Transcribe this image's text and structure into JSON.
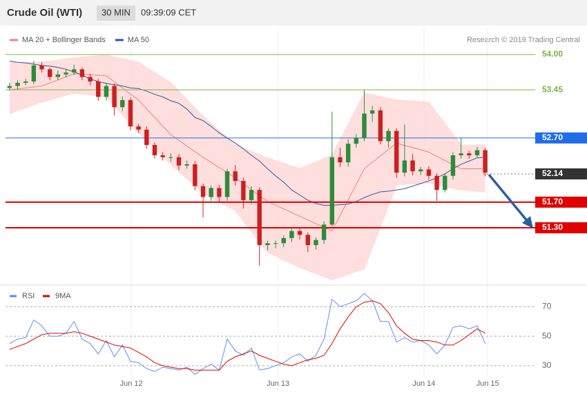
{
  "chart_data": [
    {
      "type": "candlestick",
      "title": "Crude Oil (WTI)",
      "timeframe": "30 MIN",
      "time": "09:39:09 CET",
      "credit": "Research © 2019 Trading Central",
      "up_color": "#2e8b3a",
      "down_color": "#cc2020",
      "xlim": [
        -0.5,
        65.2
      ],
      "ylim": [
        50.44,
        54.42
      ],
      "xticks": [
        {
          "value": 15.1,
          "label": "Jun 12"
        },
        {
          "value": 33.3,
          "label": "Jun 13"
        },
        {
          "value": 51.4,
          "label": "Jun 14"
        },
        {
          "value": 59.3,
          "label": "Jun 15"
        }
      ],
      "x": [
        0,
        1,
        2,
        3,
        4,
        5,
        6,
        7,
        8,
        9,
        10,
        11,
        12,
        13,
        14,
        15,
        16,
        17,
        18,
        19,
        20,
        21,
        22,
        23,
        24,
        25,
        26,
        27,
        28,
        29,
        30,
        31,
        32,
        33,
        34,
        35,
        36,
        37,
        38,
        39,
        40,
        41,
        42,
        43,
        44,
        45,
        46,
        47,
        48,
        49,
        50,
        51,
        52,
        53,
        54,
        55,
        56,
        57,
        58,
        59
      ],
      "open": [
        53.48,
        53.51,
        53.56,
        53.58,
        53.83,
        53.77,
        53.65,
        53.69,
        53.72,
        53.77,
        53.65,
        53.58,
        53.34,
        53.51,
        53.18,
        53.29,
        52.88,
        52.83,
        52.59,
        52.43,
        52.4,
        52.4,
        52.27,
        52.29,
        51.95,
        51.78,
        51.92,
        51.78,
        52.18,
        52.03,
        51.73,
        51.89,
        51.03,
        51.06,
        51.06,
        51.14,
        51.25,
        51.19,
        51.03,
        51.11,
        51.35,
        52.4,
        52.32,
        52.61,
        52.7,
        53.08,
        53.13,
        52.65,
        52.81,
        52.16,
        52.35,
        52.18,
        52.21,
        52.11,
        51.89,
        52.11,
        52.43,
        52.46,
        52.43,
        52.51
      ],
      "high": [
        53.56,
        53.6,
        53.62,
        53.9,
        53.88,
        53.8,
        53.75,
        53.78,
        53.84,
        53.8,
        53.7,
        53.62,
        53.56,
        53.55,
        53.35,
        53.33,
        52.92,
        52.88,
        52.63,
        52.48,
        52.46,
        52.45,
        52.35,
        52.34,
        51.99,
        51.96,
        51.97,
        52.22,
        52.28,
        52.08,
        51.95,
        51.93,
        51.1,
        51.1,
        51.18,
        51.3,
        51.3,
        51.23,
        51.15,
        51.4,
        53.11,
        52.55,
        52.68,
        52.76,
        53.45,
        53.2,
        53.18,
        52.85,
        52.85,
        52.91,
        52.45,
        52.25,
        52.26,
        52.15,
        52.15,
        52.48,
        52.7,
        52.5,
        52.56,
        52.55
      ],
      "low": [
        53.44,
        53.46,
        53.52,
        53.54,
        53.72,
        53.6,
        53.6,
        53.64,
        53.68,
        53.6,
        53.52,
        53.28,
        53.28,
        53.05,
        53.12,
        52.82,
        52.78,
        52.53,
        52.38,
        52.35,
        52.33,
        52.2,
        52.22,
        51.88,
        51.46,
        51.72,
        51.7,
        51.72,
        51.96,
        51.6,
        51.66,
        50.71,
        50.95,
        50.98,
        51.0,
        51.08,
        51.12,
        50.92,
        50.96,
        51.05,
        51.3,
        52.25,
        52.25,
        52.55,
        52.65,
        52.95,
        52.6,
        52.55,
        52.08,
        52.1,
        52.12,
        52.12,
        52.05,
        51.72,
        51.85,
        52.05,
        52.38,
        52.38,
        52.4,
        52.1
      ],
      "close": [
        53.51,
        53.56,
        53.58,
        53.83,
        53.77,
        53.65,
        53.69,
        53.72,
        53.77,
        53.65,
        53.58,
        53.34,
        53.51,
        53.18,
        53.29,
        52.88,
        52.83,
        52.59,
        52.43,
        52.4,
        52.4,
        52.27,
        52.29,
        51.95,
        51.78,
        51.92,
        51.78,
        52.18,
        52.03,
        51.73,
        51.89,
        51.03,
        51.06,
        51.06,
        51.14,
        51.25,
        51.19,
        51.03,
        51.11,
        51.35,
        52.4,
        52.32,
        52.61,
        52.7,
        53.08,
        53.13,
        52.65,
        52.81,
        52.16,
        52.35,
        52.18,
        52.21,
        52.11,
        51.89,
        52.11,
        52.43,
        52.46,
        52.43,
        52.51,
        52.16
      ],
      "series": [
        {
          "name": "MA 20 + Bollinger Bands",
          "color": "#f08080",
          "band_color": "#ffd6d6",
          "x": [
            0,
            4,
            8,
            12,
            16,
            20,
            24,
            28,
            32,
            36,
            40,
            44,
            48,
            52,
            56,
            59
          ],
          "values": [
            53.45,
            53.51,
            53.7,
            53.67,
            53.29,
            52.75,
            52.4,
            52.08,
            51.71,
            51.48,
            51.25,
            52.22,
            52.62,
            52.48,
            52.22,
            52.22
          ],
          "upper": [
            53.88,
            53.88,
            53.95,
            53.99,
            53.88,
            53.56,
            53.04,
            52.59,
            52.39,
            52.22,
            52.43,
            53.4,
            53.29,
            53.26,
            52.59,
            52.59
          ],
          "lower": [
            53.08,
            53.26,
            53.4,
            53.34,
            52.78,
            52.29,
            51.84,
            51.57,
            50.92,
            50.68,
            50.49,
            50.66,
            51.97,
            52.0,
            51.89,
            51.86
          ]
        },
        {
          "name": "MA 50",
          "color": "#2c5aa0",
          "x": [
            0,
            1,
            2,
            3,
            4,
            5,
            6,
            7,
            8,
            9,
            10,
            11,
            12,
            13,
            14,
            15,
            16,
            17,
            18,
            19,
            20,
            21,
            22,
            23,
            24,
            25,
            26,
            27,
            28,
            29,
            30,
            31,
            32,
            33,
            34,
            35,
            36,
            37,
            38,
            39,
            40,
            41,
            42,
            43,
            44,
            45,
            46,
            47,
            48,
            49,
            50,
            51,
            52,
            53,
            54,
            55,
            56,
            57,
            58,
            59
          ],
          "values": [
            53.9,
            53.88,
            53.87,
            53.85,
            53.83,
            53.82,
            53.8,
            53.77,
            53.73,
            53.68,
            53.62,
            53.58,
            53.55,
            53.53,
            53.51,
            53.48,
            53.47,
            53.43,
            53.38,
            53.34,
            53.28,
            53.24,
            53.15,
            53.02,
            52.97,
            52.88,
            52.78,
            52.7,
            52.62,
            52.53,
            52.43,
            52.34,
            52.22,
            52.11,
            52.01,
            51.89,
            51.81,
            51.73,
            51.68,
            51.65,
            51.65,
            51.66,
            51.67,
            51.71,
            51.77,
            51.82,
            51.86,
            51.87,
            51.89,
            51.91,
            51.95,
            51.99,
            52.03,
            52.08,
            52.14,
            52.22,
            52.29,
            52.34,
            52.39,
            52.4
          ]
        }
      ],
      "levels": [
        {
          "value": 54.0,
          "label": "54.00",
          "color": "#7cb342",
          "style": "text",
          "line": "solid"
        },
        {
          "value": 53.45,
          "label": "53.45",
          "color": "#7cb342",
          "style": "text",
          "line": "solid"
        },
        {
          "value": 52.7,
          "label": "52.70",
          "color": "#1e6ee8",
          "style": "box",
          "line": "solid"
        },
        {
          "value": 52.14,
          "label": "52.14",
          "color": "#333333",
          "style": "box",
          "line": "dotted"
        },
        {
          "value": 51.7,
          "label": "51.70",
          "color": "#e00000",
          "style": "box",
          "line": "solid"
        },
        {
          "value": 51.3,
          "label": "51.30",
          "color": "#e00000",
          "style": "box",
          "line": "solid"
        }
      ]
    },
    {
      "type": "line",
      "xlim": [
        -0.5,
        65.2
      ],
      "ylim": [
        22.9,
        81.4
      ],
      "yticks": [
        30,
        50,
        70
      ],
      "x": [
        0,
        1,
        2,
        3,
        4,
        5,
        6,
        7,
        8,
        9,
        10,
        11,
        12,
        13,
        14,
        15,
        16,
        17,
        18,
        19,
        20,
        21,
        22,
        23,
        24,
        25,
        26,
        27,
        28,
        29,
        30,
        31,
        32,
        33,
        34,
        35,
        36,
        37,
        38,
        39,
        40,
        41,
        42,
        43,
        44,
        45,
        46,
        47,
        48,
        49,
        50,
        51,
        52,
        53,
        54,
        55,
        56,
        57,
        58,
        59
      ],
      "series": [
        {
          "name": "RSI",
          "color": "#5b8def",
          "values": [
            45,
            48,
            49,
            61,
            57,
            50,
            50,
            52,
            60,
            48,
            45,
            38,
            47,
            36,
            44,
            33,
            32,
            28,
            26,
            29,
            28,
            27,
            29,
            24,
            28,
            31,
            27,
            48,
            40,
            37,
            42,
            27,
            28,
            30,
            32,
            36,
            38,
            33,
            37,
            48,
            75,
            70,
            72,
            74,
            79,
            74,
            60,
            60,
            46,
            49,
            46,
            47,
            44,
            38,
            44,
            56,
            57,
            55,
            57,
            45
          ]
        },
        {
          "name": "9MA",
          "color": "#e00000",
          "values": [
            41,
            43,
            45,
            48,
            51,
            52,
            52,
            52,
            53,
            52,
            50,
            48,
            46,
            44,
            43,
            42,
            39,
            36,
            32,
            30,
            29,
            28,
            28,
            27,
            27,
            27,
            27,
            33,
            36,
            38,
            40,
            37,
            35,
            33,
            31,
            30,
            32,
            34,
            35,
            37,
            45,
            55,
            63,
            70,
            73,
            74,
            72,
            66,
            57,
            52,
            48,
            47,
            47,
            46,
            44,
            44,
            47,
            51,
            55,
            52
          ]
        }
      ]
    }
  ]
}
